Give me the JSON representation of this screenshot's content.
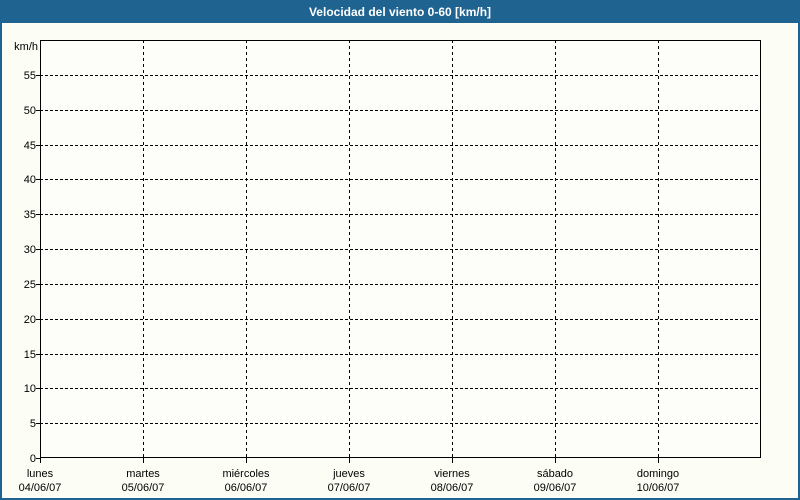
{
  "window": {
    "title": "Velocidad del viento 0-60 [km/h]"
  },
  "colors": {
    "frame_blue": "#1F6391",
    "title_text": "#FFFFFF",
    "background": "#FCFDF5",
    "plot_background": "#FDFEF9",
    "grid_line": "#000000",
    "axis_line": "#000000",
    "label_text": "#000000"
  },
  "y_axis": {
    "unit_label": "km/h",
    "min": 0,
    "max": 60,
    "tick_step": 5,
    "ticks": [
      0,
      5,
      10,
      15,
      20,
      25,
      30,
      35,
      40,
      45,
      50,
      55
    ]
  },
  "x_axis": {
    "days": [
      {
        "name": "lunes",
        "date": "04/06/07"
      },
      {
        "name": "martes",
        "date": "05/06/07"
      },
      {
        "name": "miércoles",
        "date": "06/06/07"
      },
      {
        "name": "jueves",
        "date": "07/06/07"
      },
      {
        "name": "viernes",
        "date": "08/06/07"
      },
      {
        "name": "sábado",
        "date": "09/06/07"
      },
      {
        "name": "domingo",
        "date": "10/06/07"
      }
    ]
  },
  "chart_data": {
    "type": "line",
    "title": "Velocidad del viento 0-60 [km/h]",
    "xlabel": "",
    "ylabel": "km/h",
    "ylim": [
      0,
      60
    ],
    "y_ticks": [
      0,
      5,
      10,
      15,
      20,
      25,
      30,
      35,
      40,
      45,
      50,
      55
    ],
    "x_categories": [
      "lunes 04/06/07",
      "martes 05/06/07",
      "miércoles 06/06/07",
      "jueves 07/06/07",
      "viernes 08/06/07",
      "sábado 09/06/07",
      "domingo 10/06/07"
    ],
    "series": [],
    "grid": "dashed horizontal and vertical gridlines, both on",
    "legend_position": "none",
    "note": "Plot area is empty: no wind-speed data series is drawn"
  }
}
